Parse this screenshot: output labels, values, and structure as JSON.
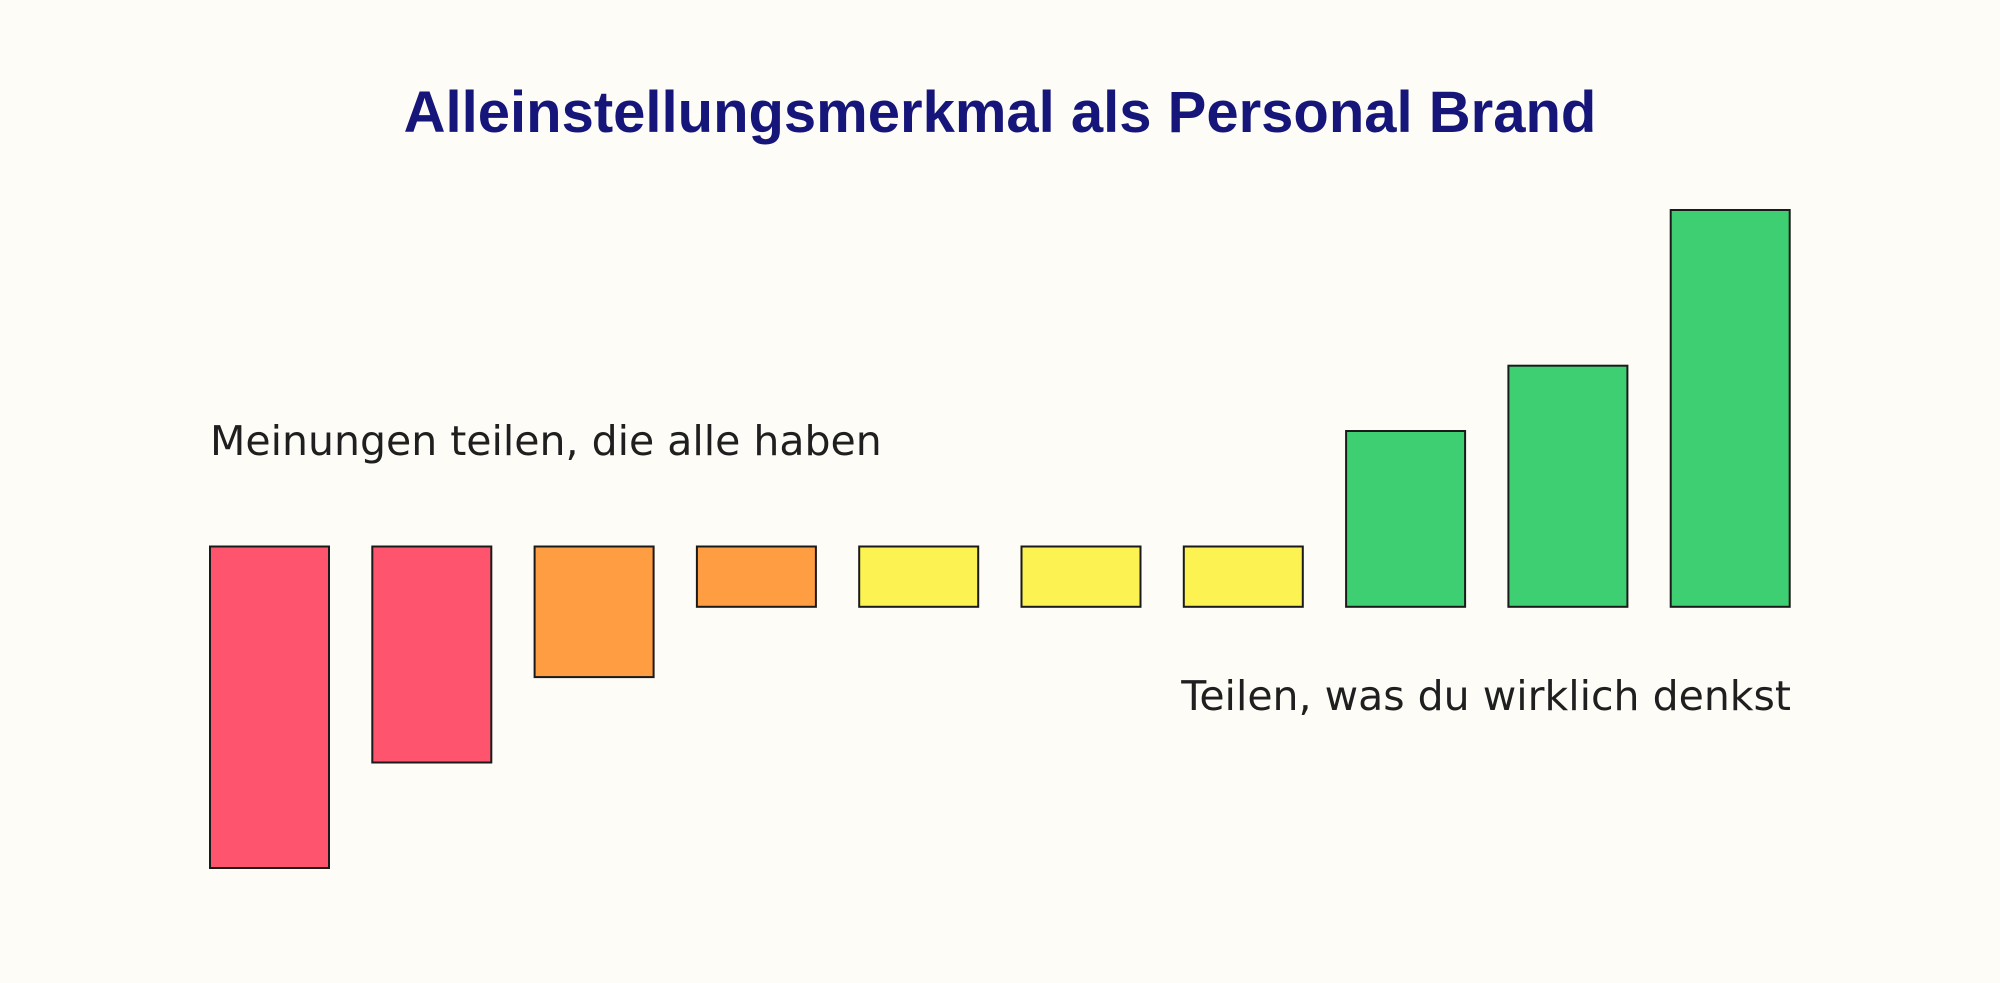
{
  "chart_data": {
    "type": "bar",
    "title": "Alleinstellungsmerkmal als Personal Brand",
    "xlabel": "",
    "ylabel": "",
    "grid": false,
    "legend": "none",
    "baseline_range": [
      0.6,
      0
    ],
    "ylim": [
      -2.6,
      4.0
    ],
    "values": [
      -2.6,
      -1.55,
      -0.7,
      0.3,
      0.6,
      0.6,
      0.6,
      1.75,
      2.4,
      3.95
    ],
    "bar_colors": [
      "#ff546e",
      "#ff546e",
      "#ff9d42",
      "#ff9d42",
      "#fcf252",
      "#fcf252",
      "#fcf252",
      "#3ecf73",
      "#3ecf73",
      "#3ecf73"
    ],
    "annotations": {
      "left": "Meinungen teilen, die alle haben",
      "right": "Teilen, was du wirklich denkst"
    }
  },
  "colors": {
    "background": "#fdfcf7",
    "title": "#15157a",
    "text": "#1f1f1f",
    "bar_stroke": "#1a1a1a"
  }
}
